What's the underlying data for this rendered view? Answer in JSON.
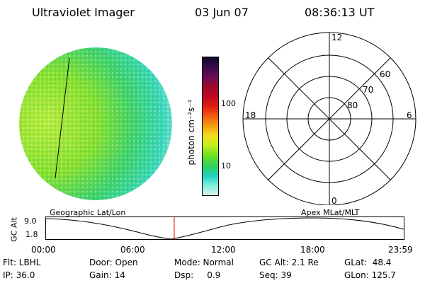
{
  "header": {
    "instrument": "Ultraviolet Imager",
    "date": "03 Jun 07",
    "time": "08:36:13 UT"
  },
  "colorbar": {
    "unit_label": "photon cm⁻²s⁻¹",
    "ticks": [
      "100",
      "10"
    ],
    "colors": [
      "#0a0a2a",
      "#3a0a4a",
      "#6a0a5a",
      "#9a0a30",
      "#c00a20",
      "#e02010",
      "#f06010",
      "#f0a010",
      "#f0e020",
      "#c0f020",
      "#70e020",
      "#30d060",
      "#20d0c0",
      "#80f0e0",
      "#e0f0f0"
    ]
  },
  "polar": {
    "mlt_labels": {
      "top": "12",
      "left": "18",
      "right": "6",
      "bottom": "0"
    },
    "lat_labels": [
      "60",
      "70",
      "80"
    ]
  },
  "track": {
    "left_title": "Geographic Lat/Lon",
    "right_title": "Apex  MLat/MLT",
    "ylabel": "GC Alt",
    "ymax": "9.0",
    "ymin": "1.8",
    "xticks": [
      "00:00",
      "06:00",
      "12:00",
      "18:00",
      "23:59"
    ],
    "current_hour": 8.6
  },
  "status": {
    "row1": [
      {
        "text": "Flt: LBHL"
      },
      {
        "text": "Door: Open"
      },
      {
        "text": "Mode: Normal"
      },
      {
        "text": "GC Alt: 2.1 Re"
      },
      {
        "text": "GLat:  48.4"
      }
    ],
    "row2": [
      {
        "text": "IP: 36.0"
      },
      {
        "text": "Gain: 14"
      },
      {
        "text": "Dsp:     0.9"
      },
      {
        "text": "Seq: 39"
      },
      {
        "text": "GLon: 125.7"
      }
    ]
  }
}
